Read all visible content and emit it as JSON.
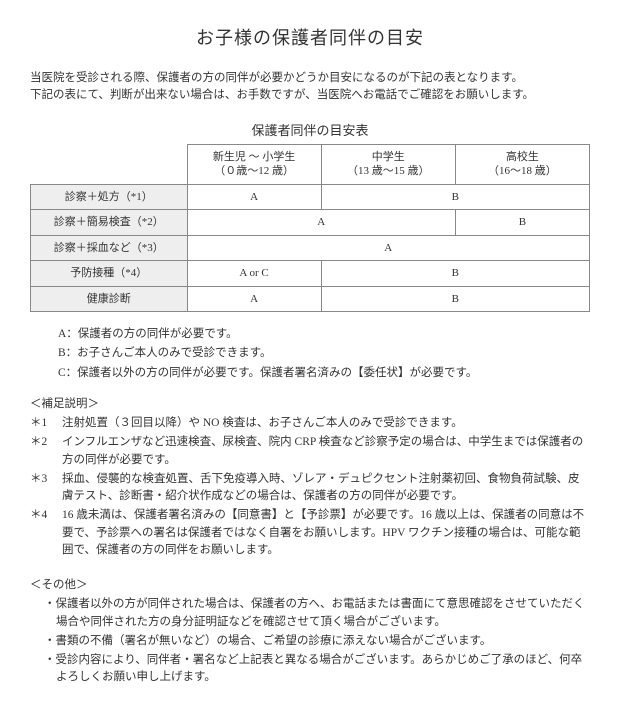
{
  "title": "お子様の保護者同伴の目安",
  "intro_line1": "当医院を受診される際、保護者の方の同伴が必要かどうか目安になるのが下記の表となります。",
  "intro_line2": "下記の表にて、判断が出来ない場合は、お手数ですが、当医院へお電話でご確認をお願いします。",
  "table_title": "保護者同伴の目安表",
  "columns": {
    "c1_line1": "新生児 ～ 小学生",
    "c1_line2": "（０歳～12 歳）",
    "c2_line1": "中学生",
    "c2_line2": "（13 歳～15 歳）",
    "c3_line1": "高校生",
    "c3_line2": "（16～18 歳）"
  },
  "rows": {
    "r1_label": "診察＋処方（*1）",
    "r1_c1": "A",
    "r1_c23": "B",
    "r2_label": "診察＋簡易検査（*2）",
    "r2_c12": "A",
    "r2_c3": "B",
    "r3_label": "診察＋採血など（*3）",
    "r3_c123": "A",
    "r4_label": "予防接種（*4）",
    "r4_c1": "A or C",
    "r4_c23": "B",
    "r5_label": "健康診断",
    "r5_c1": "A",
    "r5_c23": "B"
  },
  "legend": {
    "a": "A：保護者の方の同伴が必要です。",
    "b": "B：お子さんご本人のみで受診できます。",
    "c": "C：保護者以外の方の同伴が必要です。保護者署名済みの【委任状】が必要です。"
  },
  "notes_title": "＜補足説明＞",
  "notes": {
    "n1_label": "＊1",
    "n1_body": "注射処置（３回目以降）や NO 検査は、お子さんご本人のみで受診できます。",
    "n2_label": "＊2",
    "n2_body": "インフルエンザなど迅速検査、尿検査、院内 CRP 検査など診察予定の場合は、中学生までは保護者の方の同伴が必要です。",
    "n3_label": "＊3",
    "n3_body": "採血、侵襲的な検査処置、舌下免疫導入時、ゾレア・デュピクセント注射薬初回、食物負荷試験、皮膚テスト、診断書・紹介状作成などの場合は、保護者の方の同伴が必要です。",
    "n4_label": "＊4",
    "n4_body": "16 歳未満は、保護者署名済みの【同意書】と【予診票】が必要です。16 歳以上は、保護者の同意は不要で、予診票への署名は保護者ではなく自署をお願いします。HPV ワクチン接種の場合は、可能な範囲で、保護者の方の同伴をお願いします。"
  },
  "other_title": "＜その他＞",
  "other": {
    "o1": "・保護者以外の方が同伴された場合は、保護者の方へ、お電話または書面にて意思確認をさせていただく場合や同伴された方の身分証明証などを確認させて頂く場合がございます。",
    "o2": "・書類の不備（署名が無いなど）の場合、ご希望の診療に添えない場合がございます。",
    "o3": "・受診内容により、同伴者・署名など上記表と異なる場合がございます。あらかじめご了承のほど、何卒よろしくお願い申し上げます。"
  }
}
